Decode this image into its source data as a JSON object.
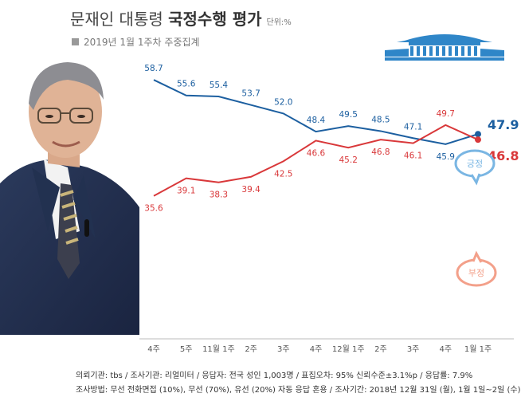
{
  "header": {
    "title_main": "문재인 대통령 ",
    "title_strong": "국정수행 평가",
    "unit": "단위:%",
    "subtitle": "2019년 1월 1주차 주중집계"
  },
  "footer": {
    "line1": "의뢰기관: tbs / 조사기관: 리얼미터 / 응답자: 전국 성인 1,003명 / 표집오차: 95% 신뢰수준±3.1%p / 응답률: 7.9%",
    "line2": "조사방법: 무선 전화면접 (10%), 무선 (70%), 유선 (20%) 자동 응답 혼용 / 조사기간: 2018년 12월 31일 (월), 1월 1일~2일 (수)"
  },
  "chart_data": {
    "type": "line",
    "categories": [
      "4주",
      "5주",
      "11월 1주",
      "2주",
      "3주",
      "4주",
      "12월 1주",
      "2주",
      "3주",
      "4주",
      "1월 1주"
    ],
    "series": [
      {
        "name": "긍정",
        "color": "#1c5fa0",
        "values": [
          58.7,
          55.6,
          55.4,
          53.7,
          52.0,
          48.4,
          49.5,
          48.5,
          47.1,
          45.9,
          47.9
        ]
      },
      {
        "name": "부정",
        "color": "#d9383a",
        "values": [
          35.6,
          39.1,
          38.3,
          39.4,
          42.5,
          46.6,
          45.2,
          46.8,
          46.1,
          49.7,
          46.8
        ]
      }
    ],
    "legend": [
      "긍정",
      "부정"
    ],
    "ylim": [
      25,
      70
    ],
    "grid": false
  }
}
